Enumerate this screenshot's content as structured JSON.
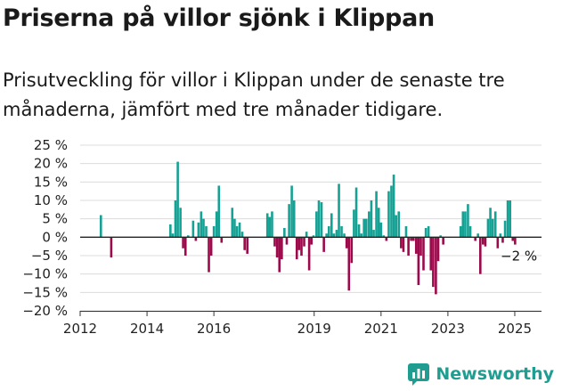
{
  "title": "Priserna på villor sjönk i Klippan",
  "subtitle": "Prisutveckling för villor i Klippan under de senaste tre månaderna, jämfört med tre månader tidigare.",
  "brand": {
    "name": "Newsworthy",
    "icon": "newsworthy-logo-icon"
  },
  "colors": {
    "positive": "#15a194",
    "negative": "#9c0a4b",
    "grid": "#dcdcdc",
    "axis": "#333333"
  },
  "chart_data": {
    "type": "bar",
    "ylim": [
      -20,
      25
    ],
    "yticks": [
      -20,
      -15,
      -10,
      -5,
      0,
      5,
      10,
      15,
      20,
      25
    ],
    "ytick_labels": [
      "−20 %",
      "−15 %",
      "−10 %",
      "−5 %",
      "0 %",
      "5 %",
      "10 %",
      "15 %",
      "20 %",
      "25 %"
    ],
    "xlim": [
      2012,
      2025.8
    ],
    "xticks": [
      2012,
      2014,
      2016,
      2019,
      2021,
      2023,
      2025
    ],
    "xtick_labels": [
      "2012",
      "2014",
      "2016",
      "2019",
      "2021",
      "2023",
      "2025"
    ],
    "grid": true,
    "last_value_label": "−2 %",
    "series": [
      {
        "x": [
          2012.62,
          2012.93,
          2014.7,
          2014.77,
          2014.85,
          2014.92,
          2015.0,
          2015.08,
          2015.15,
          2015.23,
          2015.38,
          2015.46,
          2015.54,
          2015.62,
          2015.69,
          2015.77,
          2015.85,
          2015.92,
          2016.0,
          2016.08,
          2016.15,
          2016.23,
          2016.55,
          2016.62,
          2016.69,
          2016.77,
          2016.85,
          2016.92,
          2017.0,
          2017.6,
          2017.67,
          2017.74,
          2017.82,
          2017.89,
          2017.96,
          2018.03,
          2018.11,
          2018.18,
          2018.25,
          2018.33,
          2018.4,
          2018.48,
          2018.55,
          2018.62,
          2018.7,
          2018.77,
          2018.85,
          2018.92,
          2018.98,
          2019.07,
          2019.14,
          2019.22,
          2019.29,
          2019.37,
          2019.44,
          2019.52,
          2019.59,
          2019.67,
          2019.74,
          2019.82,
          2019.9,
          2019.97,
          2020.04,
          2020.12,
          2020.19,
          2020.26,
          2020.34,
          2020.41,
          2020.49,
          2020.56,
          2020.64,
          2020.71,
          2020.78,
          2020.86,
          2020.93,
          2021.0,
          2021.08,
          2021.16,
          2021.23,
          2021.31,
          2021.38,
          2021.45,
          2021.53,
          2021.6,
          2021.67,
          2021.75,
          2021.82,
          2021.9,
          2021.97,
          2022.05,
          2022.12,
          2022.19,
          2022.27,
          2022.34,
          2022.42,
          2022.49,
          2022.56,
          2022.64,
          2022.71,
          2022.78,
          2022.86,
          2023.38,
          2023.45,
          2023.52,
          2023.6,
          2023.67,
          2023.75,
          2023.82,
          2023.9,
          2023.97,
          2024.05,
          2024.12,
          2024.2,
          2024.27,
          2024.34,
          2024.42,
          2024.49,
          2024.57,
          2024.64,
          2024.71,
          2024.79,
          2024.86,
          2024.94,
          2025.01
        ],
        "values": [
          6,
          -5.5,
          3.5,
          1,
          10,
          20.5,
          8,
          -3,
          -5,
          0.5,
          4.5,
          -1,
          4,
          7,
          5,
          3,
          -9.5,
          -5,
          3,
          7,
          14,
          -1.5,
          8,
          5,
          3,
          4,
          1.5,
          -3.5,
          -4.5,
          6.5,
          5.5,
          7,
          -2.5,
          -5.5,
          -9.5,
          -6,
          2.5,
          -2,
          9,
          14,
          10,
          -6,
          -3.5,
          -5,
          -2.5,
          1.5,
          -9,
          -2,
          0.5,
          7,
          10,
          9.5,
          -4,
          1,
          3,
          6.5,
          1,
          2,
          14.5,
          3,
          1,
          -3,
          -14.5,
          -7,
          7.5,
          13.5,
          3.5,
          1,
          5,
          5,
          7,
          10,
          2,
          12.5,
          8,
          4,
          0.5,
          -1,
          12.5,
          14,
          17,
          6,
          7,
          -3,
          -4,
          3,
          -5,
          -1,
          -1,
          -4.5,
          -13,
          -5,
          -9,
          2.5,
          3,
          -9,
          -13.5,
          -15.5,
          -6.5,
          0.5,
          -2,
          3,
          7,
          7,
          9,
          3,
          0,
          -1,
          1,
          -10,
          -2,
          -2.5,
          5,
          8,
          5,
          7,
          -3,
          1,
          -1.5,
          4.5,
          10,
          10,
          -1,
          -2
        ]
      }
    ]
  }
}
